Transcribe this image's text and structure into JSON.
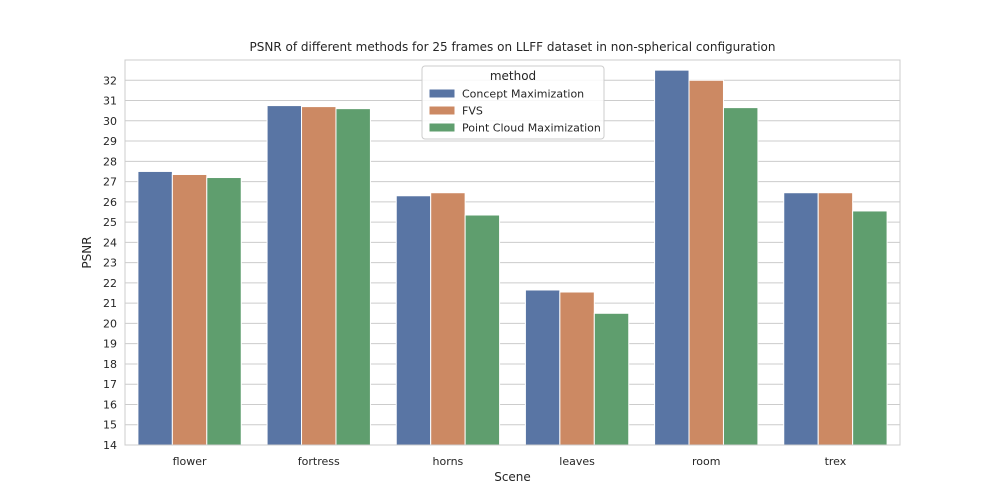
{
  "chart_data": {
    "type": "bar",
    "title": "PSNR of different methods for 25 frames on LLFF dataset in non-spherical configuration",
    "xlabel": "Scene",
    "ylabel": "PSNR",
    "categories": [
      "flower",
      "fortress",
      "horns",
      "leaves",
      "room",
      "trex"
    ],
    "series": [
      {
        "name": "Concept Maximization",
        "color": "#5975a4",
        "values": [
          27.5,
          30.75,
          26.3,
          21.65,
          32.5,
          26.45
        ]
      },
      {
        "name": "FVS",
        "color": "#cc8963",
        "values": [
          27.35,
          30.7,
          26.45,
          21.55,
          32.0,
          26.45
        ]
      },
      {
        "name": "Point Cloud Maximization",
        "color": "#5f9e6e",
        "values": [
          27.2,
          30.6,
          25.35,
          20.5,
          30.65,
          25.55
        ]
      }
    ],
    "ylim": [
      14,
      33
    ],
    "yticks": [
      14,
      15,
      16,
      17,
      18,
      19,
      20,
      21,
      22,
      23,
      24,
      25,
      26,
      27,
      28,
      29,
      30,
      31,
      32
    ],
    "grid": true,
    "legend": {
      "title": "method",
      "placement": "top-center"
    }
  }
}
